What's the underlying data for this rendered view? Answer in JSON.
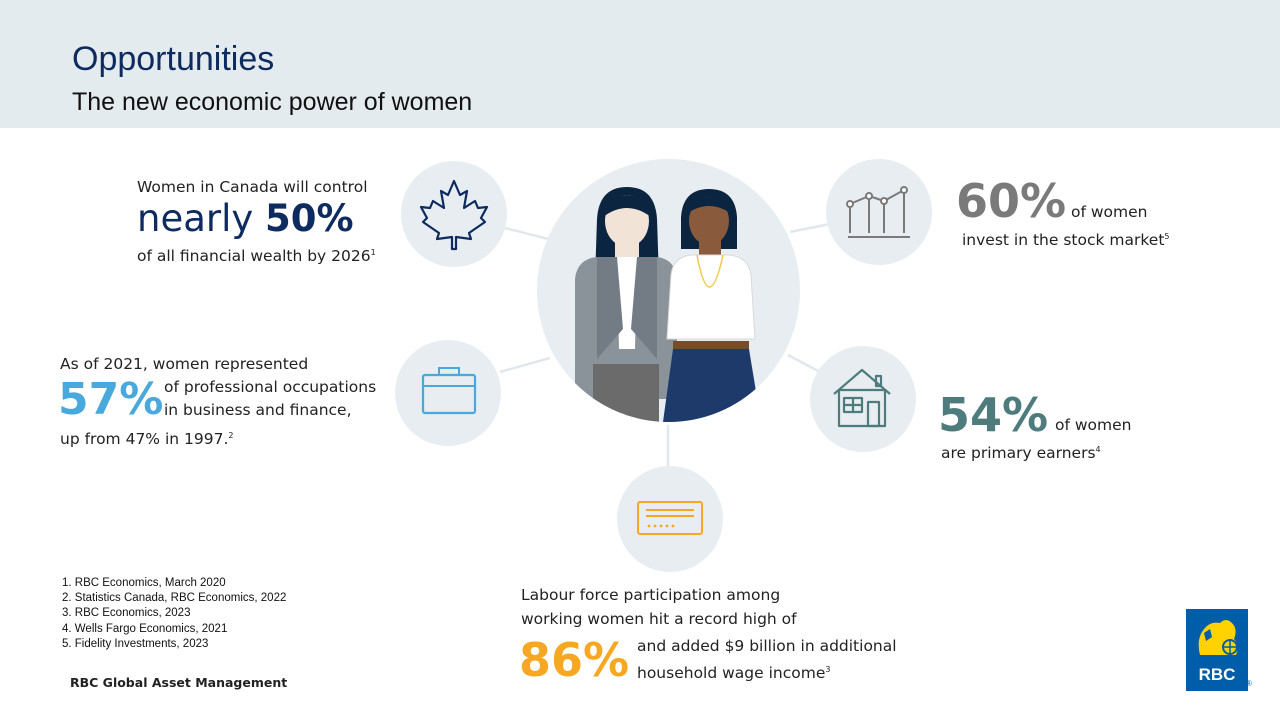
{
  "header": {
    "title": "Opportunities",
    "subtitle": "The new economic power of women"
  },
  "stats": {
    "wealth": {
      "line1": "Women in Canada will control",
      "prefix": "nearly ",
      "value": "50%",
      "line3": "of all financial wealth by 2026",
      "note": "1",
      "icon": "maple-leaf-icon"
    },
    "professional": {
      "line1": "As of 2021, women represented",
      "value": "57%",
      "side1": "of professional occupations",
      "side2": "in business and finance,",
      "line4": "up from 47% in 1997.",
      "note": "2",
      "icon": "briefcase-icon"
    },
    "stock": {
      "value": "60%",
      "side": "of women",
      "line2": "invest in the stock market",
      "note": "5",
      "icon": "line-chart-icon"
    },
    "earners": {
      "value": "54%",
      "side": "of women",
      "line2": "are primary earners",
      "note": "4",
      "icon": "house-icon"
    },
    "labour": {
      "line1": "Labour force participation among",
      "line2": "working women hit a record high of",
      "value": "86%",
      "side1": "and added $9 billion in additional",
      "side2": "household wage income",
      "note": "3",
      "icon": "cheque-icon"
    }
  },
  "footnotes": [
    "1.  RBC Economics, March 2020",
    "2.  Statistics Canada, RBC Economics, 2022",
    "3.  RBC Economics, 2023",
    "4.  Wells Fargo Economics, 2021",
    "5.  Fidelity Investments, 2023"
  ],
  "brand": "RBC Global Asset Management",
  "logo": {
    "text": "RBC",
    "registered": "®"
  },
  "colors": {
    "navy": "#0e2b5f",
    "lightblue": "#49a8dc",
    "gray": "#7a7a7a",
    "teal": "#4e7c7c",
    "orange": "#f7a823",
    "header_bg": "#e4ebef",
    "circle_bg": "#e7edf1"
  }
}
